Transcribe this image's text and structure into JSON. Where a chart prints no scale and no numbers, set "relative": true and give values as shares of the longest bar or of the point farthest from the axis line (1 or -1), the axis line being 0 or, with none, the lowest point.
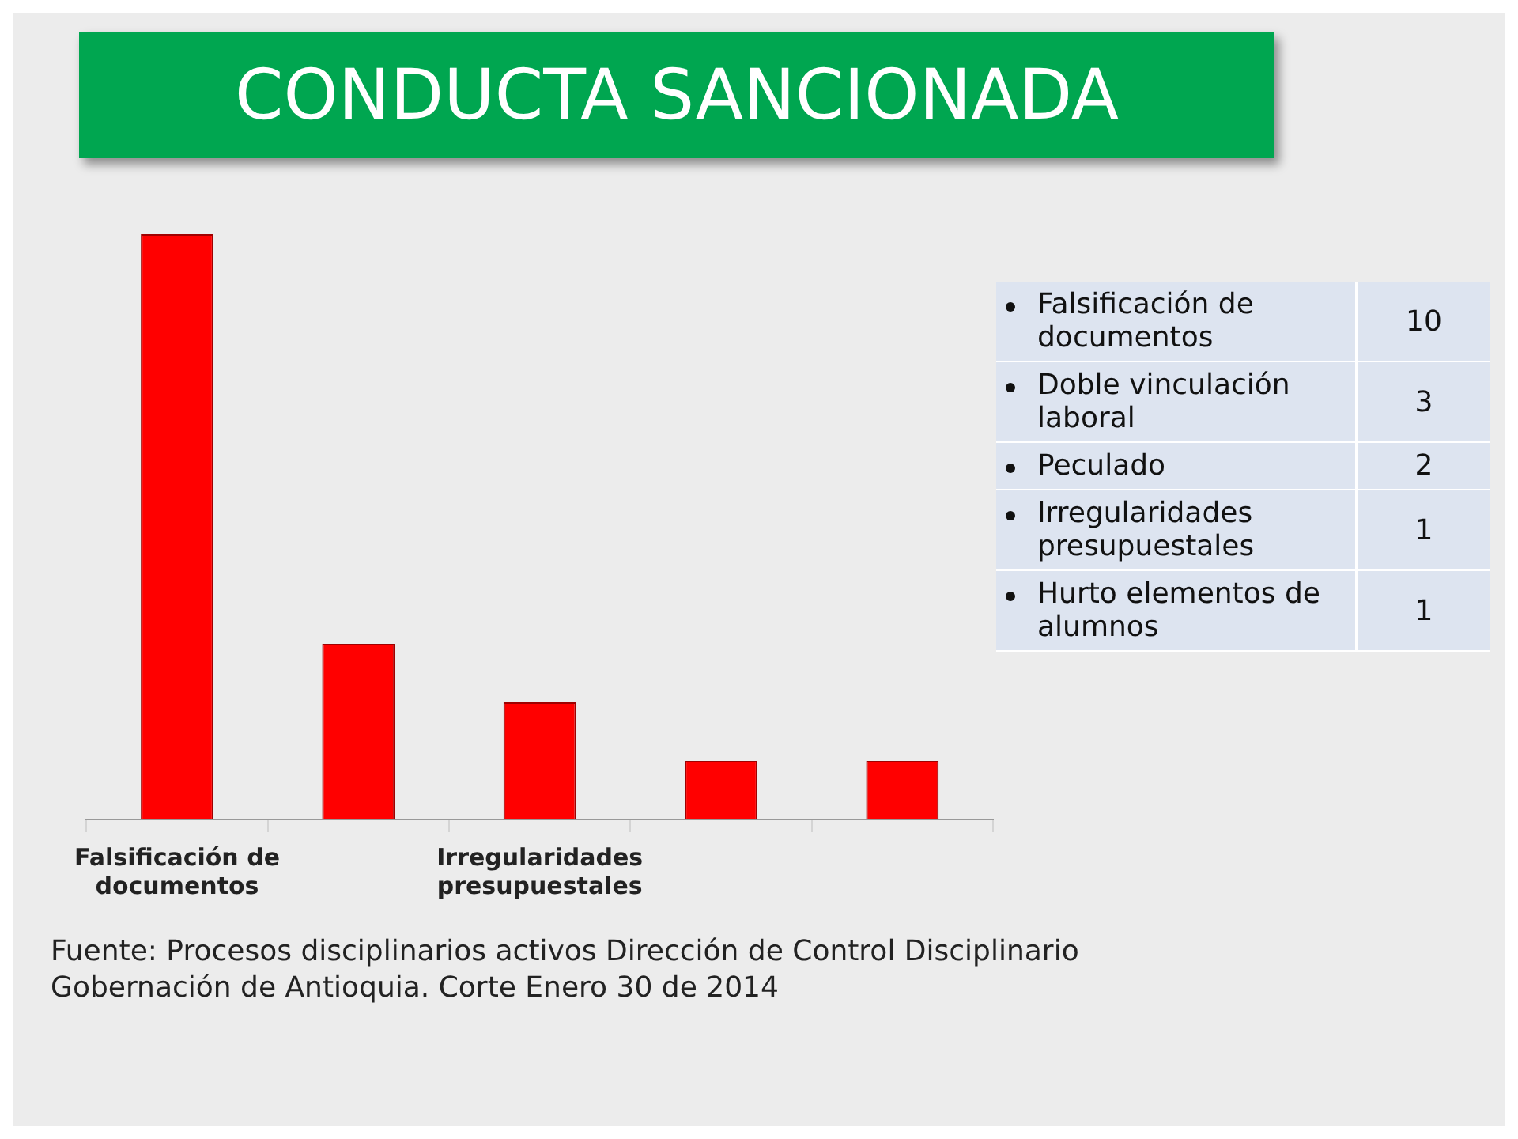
{
  "chart_data": [
    {
      "type": "bar",
      "title": "CONDUCTA SANCIONADA",
      "relative": true,
      "categories": [
        "Falsificación de documentos",
        null,
        "Irregularidades presupuestales",
        null,
        null
      ],
      "values": [
        1,
        0.3,
        0.2,
        0.1,
        0.1
      ],
      "color": "#ff0000",
      "annotations": [
        "Fuente:  Procesos disciplinarios activos Dirección de Control Disciplinario Gobernación de Antioquia. Corte Enero 30 de 2014"
      ]
    },
    {
      "type": "other",
      "categories": [
        "Falsificación de documentos",
        "Doble vinculación laboral",
        "Peculado",
        "Irregularidades presupuestales",
        "Hurto elementos de alumnos"
      ],
      "values": [
        10,
        3,
        2,
        1,
        1
      ],
      "data_labels": true
    }
  ]
}
